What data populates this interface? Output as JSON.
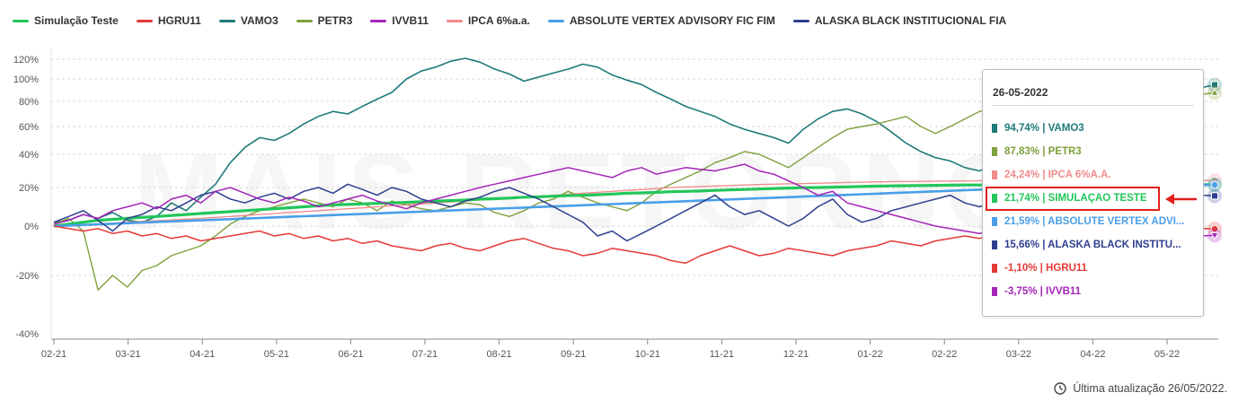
{
  "legend": [
    {
      "name": "Simulação Teste",
      "color": "#22c65a"
    },
    {
      "name": "HGRU11",
      "color": "#e53935"
    },
    {
      "name": "VAMO3",
      "color": "#1f7a7a"
    },
    {
      "name": "PETR3",
      "color": "#7ea03c"
    },
    {
      "name": "IVVB11",
      "color": "#a424b8"
    },
    {
      "name": "IPCA 6%a.a.",
      "color": "#f08a8a"
    },
    {
      "name": "ABSOLUTE VERTEX ADVISORY FIC FIM",
      "color": "#4a9fe8"
    },
    {
      "name": "ALASKA BLACK INSTITUCIONAL FIA",
      "color": "#2e3f8f"
    }
  ],
  "tooltip": {
    "date": "26-05-2022",
    "rows": [
      {
        "text": "94,74%  |  VAMO3",
        "color": "#1f7a7a"
      },
      {
        "text": "87,83%  |  PETR3",
        "color": "#7ea03c"
      },
      {
        "text": "24,24%  |  IPCA 6%A.A.",
        "color": "#f08a8a"
      },
      {
        "text": "21,74%  |  SIMULAÇÃO TESTE",
        "color": "#22c65a"
      },
      {
        "text": "21,59%  |  ABSOLUTE VERTEX ADVI...",
        "color": "#4a9fe8"
      },
      {
        "text": "15,66%  |  ALASKA BLACK INSTITU...",
        "color": "#2e3f8f"
      },
      {
        "text": "-1,10%  |  HGRU11",
        "color": "#e53935"
      },
      {
        "text": "-3,75%  |  IVVB11",
        "color": "#a424b8"
      }
    ]
  },
  "update_text": "Última atualização 26/05/2022.",
  "watermark": "MAIS RETORNO",
  "chart_data": {
    "type": "line",
    "x_tick_labels": [
      "02-21",
      "03-21",
      "04-21",
      "05-21",
      "06-21",
      "07-21",
      "08-21",
      "09-21",
      "10-21",
      "11-21",
      "12-21",
      "01-22",
      "02-22",
      "03-22",
      "04-22",
      "05-22"
    ],
    "y_tick_labels": [
      "120%",
      "100%",
      "80%",
      "60%",
      "40%",
      "20%",
      "0%",
      "-20%",
      "-40%"
    ],
    "y_tick_values": [
      120,
      100,
      80,
      60,
      40,
      20,
      0,
      -20,
      -40
    ],
    "ylim": [
      -40,
      125
    ],
    "series": [
      {
        "name": "VAMO3",
        "color": "#1f7a7a",
        "width": 1.6,
        "end_marker": "square",
        "values": [
          2,
          3,
          6,
          4,
          7,
          3,
          2,
          5,
          12,
          8,
          15,
          22,
          35,
          45,
          52,
          50,
          55,
          62,
          68,
          72,
          70,
          76,
          82,
          88,
          100,
          108,
          112,
          118,
          121,
          117,
          110,
          105,
          98,
          102,
          106,
          110,
          115,
          112,
          104,
          99,
          95,
          88,
          82,
          76,
          72,
          68,
          62,
          58,
          55,
          52,
          48,
          58,
          66,
          72,
          74,
          70,
          64,
          56,
          48,
          42,
          38,
          36,
          32,
          30,
          34,
          48,
          58,
          66,
          62,
          56,
          60,
          64,
          70,
          78,
          82,
          86,
          88,
          91,
          92,
          94.74
        ]
      },
      {
        "name": "PETR3",
        "color": "#7ea03c",
        "width": 1.4,
        "end_marker": "triangle",
        "values": [
          1,
          4,
          -2,
          -25,
          -20,
          -24,
          -18,
          -16,
          -12,
          -10,
          -8,
          -4,
          1,
          5,
          8,
          10,
          12,
          14,
          12,
          10,
          14,
          12,
          8,
          13,
          11,
          9,
          8,
          10,
          12,
          11,
          7,
          5,
          8,
          12,
          14,
          18,
          15,
          12,
          10,
          8,
          12,
          18,
          22,
          26,
          30,
          35,
          38,
          42,
          40,
          36,
          32,
          38,
          45,
          52,
          58,
          60,
          62,
          65,
          68,
          60,
          55,
          60,
          66,
          72,
          74,
          70,
          68,
          72,
          76,
          80,
          82,
          84,
          86,
          85,
          87,
          86,
          88,
          87,
          86,
          87.83
        ]
      },
      {
        "name": "IPCA 6%a.a.",
        "color": "#f08a8a",
        "width": 1.3,
        "end_marker": "circle",
        "values": [
          0,
          0.4,
          0.8,
          1.2,
          1.6,
          2,
          2.4,
          2.8,
          3.2,
          3.6,
          4,
          4.5,
          5,
          5.5,
          6,
          6.5,
          7,
          7.5,
          8,
          8.5,
          9,
          9.5,
          10,
          10.5,
          11,
          11.5,
          12,
          12.5,
          13,
          13.5,
          14,
          14.5,
          15,
          15.5,
          16,
          16.5,
          17,
          17.5,
          18,
          18.5,
          19,
          19.5,
          20,
          20.3,
          20.6,
          20.9,
          21.2,
          21.5,
          21.8,
          22,
          22.2,
          22.4,
          22.6,
          22.8,
          23,
          23.2,
          23.4,
          23.5,
          23.6,
          23.7,
          23.8,
          23.9,
          24,
          24.05,
          24.1,
          24.15,
          24.2,
          24.22,
          24.24,
          24.24,
          24.24,
          24.24,
          24.24,
          24.24,
          24.24,
          24.24,
          24.24,
          24.24,
          24.24,
          24.24
        ]
      },
      {
        "name": "Simulação Teste",
        "color": "#22c65a",
        "width": 3.2,
        "end_marker": "circle",
        "values": [
          0,
          1,
          2,
          3,
          3.5,
          4,
          4.5,
          5,
          5.5,
          6,
          6.5,
          7,
          7.5,
          8,
          8.5,
          9,
          9.5,
          10,
          10.5,
          11,
          11.2,
          11.5,
          11.8,
          12,
          12.3,
          12.6,
          13,
          13.2,
          13.5,
          14,
          14.2,
          14.5,
          15,
          15.2,
          15.5,
          15.8,
          16,
          16.3,
          16.6,
          17,
          17.2,
          17.5,
          17.8,
          18,
          18.2,
          18.5,
          18.8,
          19,
          19.2,
          19.5,
          19.7,
          19.9,
          20,
          20.2,
          20.4,
          20.6,
          20.8,
          21,
          21.1,
          21.2,
          21.3,
          21.4,
          21.5,
          21.5,
          21.6,
          21.6,
          21.7,
          21.7,
          21.7,
          21.74,
          21.74,
          21.74,
          21.74,
          21.74,
          21.74,
          21.74,
          21.74,
          21.74,
          21.74,
          21.74
        ]
      },
      {
        "name": "ABSOLUTE VERTEX ADVISORY FIC FIM",
        "color": "#4a9fe8",
        "width": 2.6,
        "end_marker": "circle",
        "values": [
          0,
          0.3,
          0.6,
          0.9,
          1.2,
          1.5,
          1.8,
          2.1,
          2.4,
          2.7,
          3,
          3.3,
          3.6,
          3.9,
          4.2,
          4.5,
          4.8,
          5.1,
          5.4,
          5.7,
          6,
          6.3,
          6.6,
          6.9,
          7.2,
          7.5,
          7.8,
          8.1,
          8.4,
          8.7,
          9,
          9.3,
          9.6,
          9.9,
          10.2,
          10.5,
          10.8,
          11.1,
          11.4,
          11.7,
          12,
          12.3,
          12.6,
          12.9,
          13.2,
          13.5,
          13.8,
          14.1,
          14.4,
          14.7,
          15,
          15.3,
          15.6,
          15.9,
          16.2,
          16.5,
          16.8,
          17.1,
          17.4,
          17.7,
          18,
          18.3,
          18.6,
          18.9,
          19.2,
          19.5,
          19.8,
          20.1,
          20.4,
          20.7,
          21,
          21.2,
          21.3,
          21.4,
          21.45,
          21.5,
          21.55,
          21.57,
          21.58,
          21.59
        ]
      },
      {
        "name": "ALASKA BLACK INSTITUCIONAL FIA",
        "color": "#2e3f8f",
        "width": 1.5,
        "end_marker": "square",
        "values": [
          2,
          5,
          8,
          3,
          -2,
          4,
          6,
          10,
          8,
          12,
          16,
          18,
          14,
          12,
          15,
          17,
          14,
          18,
          20,
          17,
          22,
          19,
          16,
          20,
          18,
          14,
          12,
          10,
          13,
          15,
          18,
          20,
          17,
          14,
          10,
          6,
          2,
          -4,
          -2,
          -6,
          -3,
          0,
          4,
          8,
          12,
          16,
          10,
          6,
          8,
          4,
          0,
          4,
          10,
          14,
          6,
          2,
          4,
          8,
          10,
          12,
          14,
          16,
          12,
          10,
          13,
          16,
          12,
          14,
          16,
          18,
          15,
          14,
          16,
          17,
          15,
          14,
          16,
          15,
          16,
          15.66
        ]
      },
      {
        "name": "HGRU11",
        "color": "#e53935",
        "width": 1.5,
        "end_marker": "circle",
        "values": [
          0,
          -1,
          -2,
          -1,
          -3,
          -2,
          -4,
          -3,
          -5,
          -4,
          -6,
          -5,
          -4,
          -3,
          -2,
          -4,
          -3,
          -5,
          -4,
          -6,
          -5,
          -7,
          -6,
          -8,
          -9,
          -10,
          -8,
          -7,
          -9,
          -10,
          -8,
          -6,
          -5,
          -7,
          -9,
          -10,
          -12,
          -11,
          -9,
          -10,
          -11,
          -12,
          -14,
          -15,
          -12,
          -10,
          -8,
          -10,
          -12,
          -11,
          -9,
          -10,
          -11,
          -12,
          -10,
          -9,
          -8,
          -6,
          -7,
          -8,
          -6,
          -5,
          -4,
          -5,
          -3,
          -4,
          -2,
          -3,
          -1,
          -2,
          -1,
          -2,
          0,
          -1,
          -2,
          -1,
          0,
          -1,
          -1,
          -1.1
        ]
      },
      {
        "name": "IVVB11",
        "color": "#a424b8",
        "width": 1.5,
        "end_marker": "triangle-down",
        "values": [
          1,
          3,
          6,
          4,
          8,
          10,
          12,
          9,
          14,
          16,
          12,
          18,
          20,
          17,
          14,
          12,
          15,
          13,
          10,
          12,
          14,
          16,
          13,
          11,
          9,
          12,
          14,
          16,
          18,
          20,
          22,
          24,
          26,
          28,
          30,
          32,
          30,
          28,
          26,
          30,
          32,
          28,
          30,
          32,
          31,
          30,
          32,
          34,
          30,
          28,
          24,
          20,
          16,
          18,
          12,
          10,
          8,
          6,
          4,
          2,
          0,
          -1,
          -2,
          -3,
          -2,
          -4,
          -3,
          -5,
          -4,
          -3,
          -4,
          -5,
          -4,
          -3,
          -4,
          -3,
          -4,
          -3,
          -4,
          -3.75
        ]
      }
    ]
  }
}
